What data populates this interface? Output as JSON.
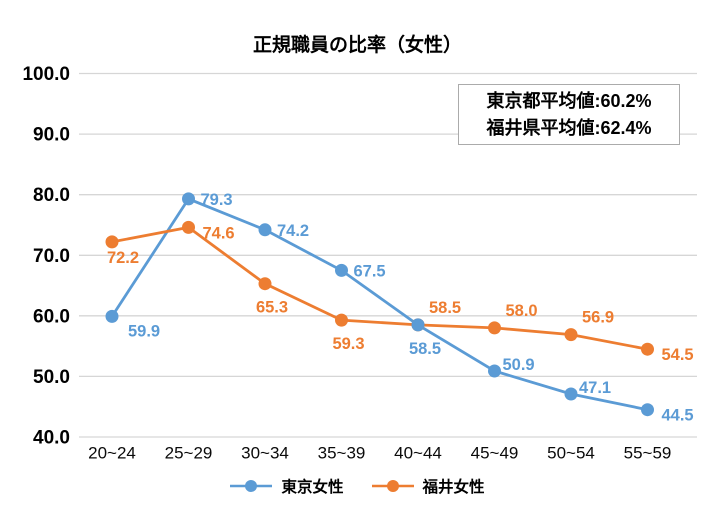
{
  "chart_data": {
    "type": "line",
    "title": "正規職員の比率（女性）",
    "categories": [
      "20~24",
      "25~29",
      "30~34",
      "35~39",
      "40~44",
      "45~49",
      "50~54",
      "55~59"
    ],
    "series": [
      {
        "name": "東京女性",
        "color": "#5B9BD5",
        "values": [
          59.9,
          79.3,
          74.2,
          67.5,
          58.5,
          50.9,
          47.1,
          44.5
        ],
        "labels": [
          "59.9",
          "79.3",
          "74.2",
          "67.5",
          "58.5",
          "50.9",
          "47.1",
          "44.5"
        ],
        "label_positions": [
          "below-right",
          "right",
          "right",
          "right",
          "below",
          "right-up",
          "right-up",
          "right-down"
        ]
      },
      {
        "name": "福井女性",
        "color": "#ED7D31",
        "values": [
          72.2,
          74.6,
          65.3,
          59.3,
          58.5,
          58.0,
          56.9,
          54.5
        ],
        "labels": [
          "72.2",
          "74.6",
          "65.3",
          "59.3",
          "58.5",
          "58.0",
          "56.9",
          "54.5"
        ],
        "label_positions": [
          "below-near",
          "right-down",
          "below",
          "below",
          "above-right",
          "above-right",
          "above-right",
          "right-down"
        ]
      }
    ],
    "ylim": [
      40,
      100
    ],
    "yticks": [
      40,
      50,
      60,
      70,
      80,
      90,
      100
    ],
    "ytick_labels": [
      "40.0",
      "50.0",
      "60.0",
      "70.0",
      "80.0",
      "90.0",
      "100.0"
    ],
    "grid": true,
    "gridline_color": "#D6D6D6",
    "legend_position": "bottom",
    "annotation": {
      "lines": [
        "東京都平均値:60.2%",
        "福井県平均値:62.4%"
      ]
    }
  }
}
